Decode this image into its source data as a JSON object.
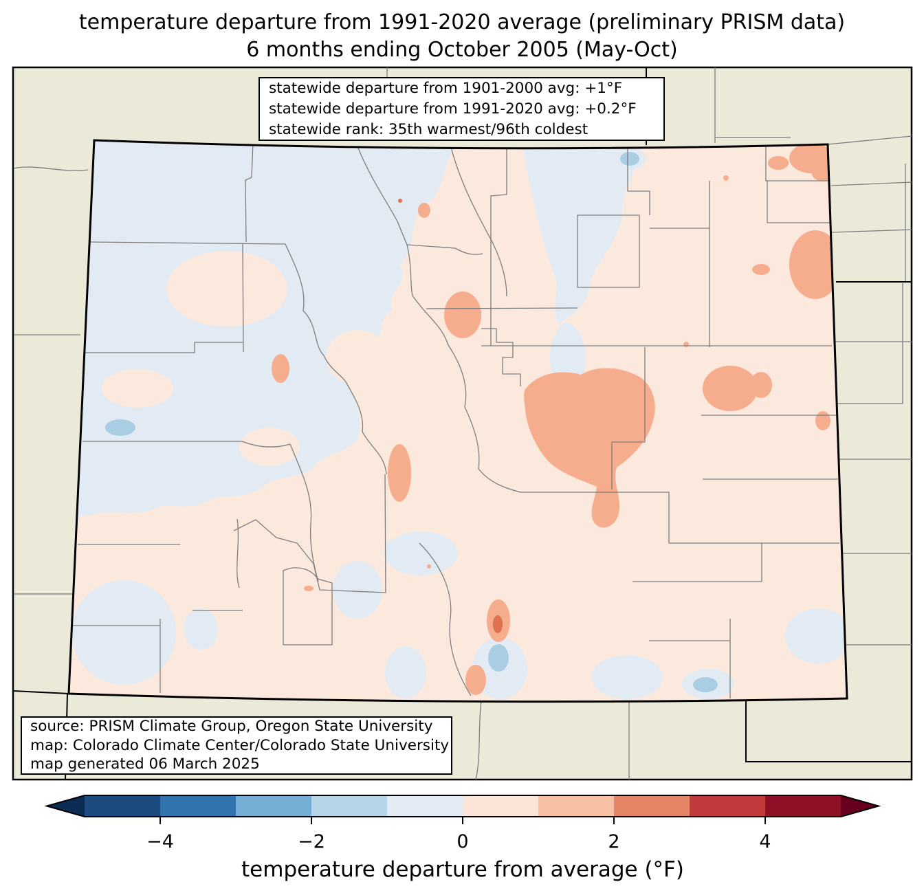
{
  "title": {
    "line1": "temperature departure from 1991-2020 average (preliminary PRISM data)",
    "line2": "6 months ending October 2005 (May-Oct)"
  },
  "stats_box": {
    "lines": [
      "statewide departure from 1901-2000 avg: +1°F",
      "statewide departure from 1991-2020 avg: +0.2°F",
      "statewide rank: 35th warmest/96th coldest"
    ]
  },
  "source_box": {
    "lines": [
      "source: PRISM Climate Group, Oregon State University",
      "map: Colorado Climate Center/Colorado State University",
      "map generated 06 March 2025"
    ]
  },
  "map": {
    "region": "Colorado",
    "palette": {
      "outside_land": "#ebe9d8",
      "near_zero_warm": "#fce9de",
      "near_zero_cool": "#e2ebf3",
      "cool_1_2": "#a9cee4",
      "warm_1_2": "#f6ad8d",
      "warm_2_3": "#e0714e",
      "county_line": "#7d7d7d",
      "state_line": "#000000"
    }
  },
  "colorbar": {
    "axis_label": "temperature departure from average (°F)",
    "range": [
      -5,
      5
    ],
    "ticks": [
      {
        "value": -4,
        "label": "−4"
      },
      {
        "value": -2,
        "label": "−2"
      },
      {
        "value": 0,
        "label": "0"
      },
      {
        "value": 2,
        "label": "2"
      },
      {
        "value": 4,
        "label": "4"
      }
    ],
    "segment_colors": [
      "#1c4b80",
      "#3274b0",
      "#74aed2",
      "#b5d4e7",
      "#e2ebf3",
      "#fbe5d8",
      "#f8c1a5",
      "#e28465",
      "#c23a3b",
      "#8e1127"
    ],
    "under_color": "#0b2c53",
    "over_color": "#67001f"
  }
}
